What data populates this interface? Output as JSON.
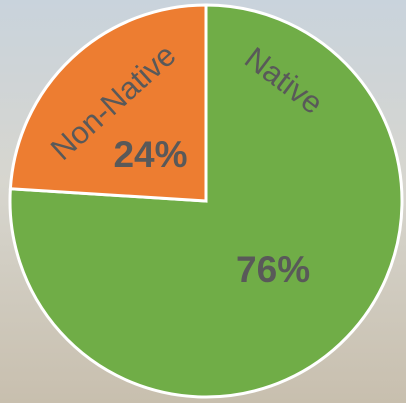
{
  "chart_data": {
    "type": "pie",
    "categories": [
      "Native",
      "Non-Native"
    ],
    "values": [
      76,
      24
    ],
    "value_labels": [
      "76%",
      "24%"
    ],
    "colors": [
      "#70ad47",
      "#ed7d31"
    ]
  }
}
